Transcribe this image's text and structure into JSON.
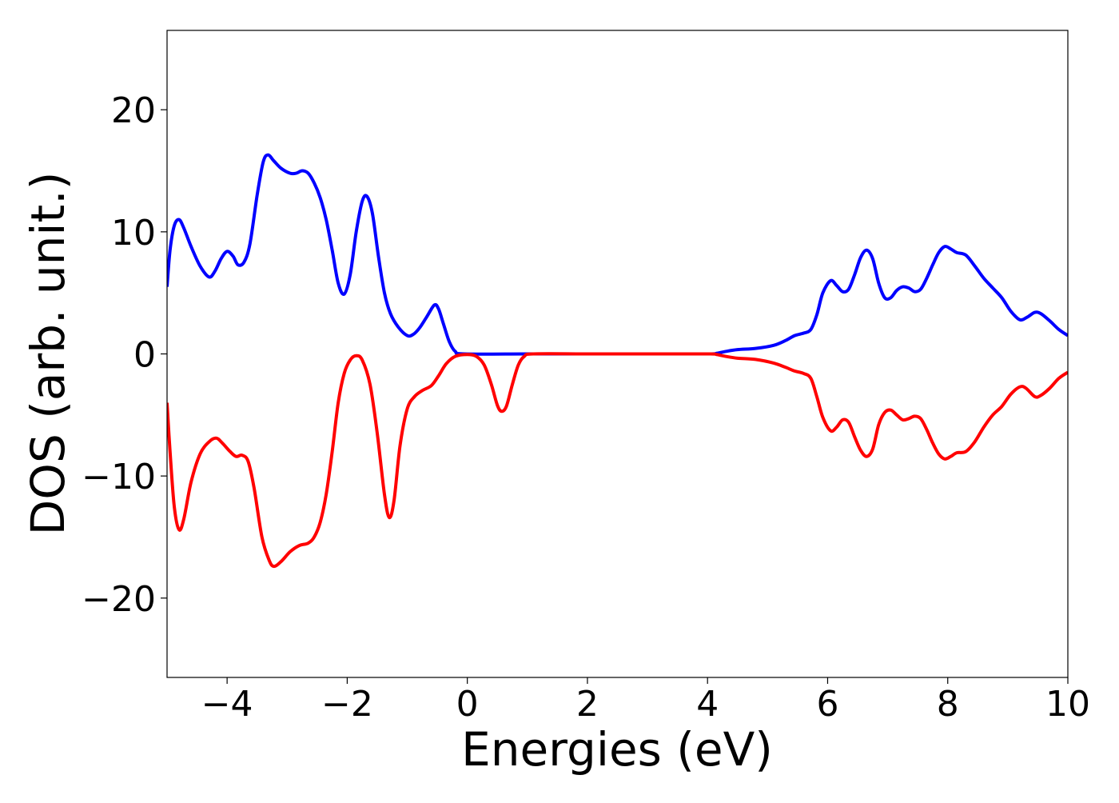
{
  "chart_data": {
    "type": "line",
    "title": "",
    "xlabel": "Energies (eV)",
    "ylabel": "DOS (arb. unit.)",
    "xlim": [
      -5,
      10
    ],
    "ylim": [
      -26.5,
      26.5
    ],
    "x_ticks": [
      -4,
      -2,
      0,
      2,
      4,
      6,
      8,
      10
    ],
    "x_tick_labels": [
      "−4",
      "−2",
      "0",
      "2",
      "4",
      "6",
      "8",
      "10"
    ],
    "y_ticks": [
      -20,
      -10,
      0,
      10,
      20
    ],
    "y_tick_labels": [
      "−20",
      "−10",
      "0",
      "10",
      "20"
    ],
    "grid": false,
    "legend": "none",
    "series": [
      {
        "color": "#0000ff",
        "points": [
          [
            -5.0,
            5.5
          ],
          [
            -4.95,
            8.5
          ],
          [
            -4.88,
            10.5
          ],
          [
            -4.8,
            11.0
          ],
          [
            -4.72,
            10.3
          ],
          [
            -4.6,
            8.8
          ],
          [
            -4.45,
            7.2
          ],
          [
            -4.3,
            6.3
          ],
          [
            -4.2,
            6.8
          ],
          [
            -4.1,
            7.8
          ],
          [
            -4.0,
            8.4
          ],
          [
            -3.9,
            8.0
          ],
          [
            -3.82,
            7.3
          ],
          [
            -3.72,
            7.5
          ],
          [
            -3.62,
            9.0
          ],
          [
            -3.5,
            13.0
          ],
          [
            -3.4,
            15.7
          ],
          [
            -3.32,
            16.3
          ],
          [
            -3.22,
            15.8
          ],
          [
            -3.1,
            15.2
          ],
          [
            -2.95,
            14.8
          ],
          [
            -2.85,
            14.8
          ],
          [
            -2.75,
            15.0
          ],
          [
            -2.65,
            14.8
          ],
          [
            -2.55,
            14.0
          ],
          [
            -2.45,
            12.8
          ],
          [
            -2.35,
            11.0
          ],
          [
            -2.25,
            8.5
          ],
          [
            -2.15,
            5.8
          ],
          [
            -2.05,
            4.9
          ],
          [
            -1.95,
            6.5
          ],
          [
            -1.85,
            10.0
          ],
          [
            -1.75,
            12.5
          ],
          [
            -1.67,
            12.9
          ],
          [
            -1.58,
            11.5
          ],
          [
            -1.48,
            8.0
          ],
          [
            -1.38,
            5.0
          ],
          [
            -1.28,
            3.3
          ],
          [
            -1.15,
            2.2
          ],
          [
            -1.0,
            1.5
          ],
          [
            -0.9,
            1.6
          ],
          [
            -0.8,
            2.1
          ],
          [
            -0.68,
            3.0
          ],
          [
            -0.55,
            4.0
          ],
          [
            -0.48,
            3.7
          ],
          [
            -0.4,
            2.5
          ],
          [
            -0.3,
            1.0
          ],
          [
            -0.2,
            0.2
          ],
          [
            -0.05,
            0.0
          ],
          [
            1.0,
            0.0
          ],
          [
            2.0,
            0.0
          ],
          [
            3.0,
            0.0
          ],
          [
            4.0,
            0.0
          ],
          [
            4.15,
            0.05
          ],
          [
            4.3,
            0.2
          ],
          [
            4.5,
            0.35
          ],
          [
            4.8,
            0.45
          ],
          [
            5.1,
            0.7
          ],
          [
            5.3,
            1.1
          ],
          [
            5.45,
            1.5
          ],
          [
            5.6,
            1.7
          ],
          [
            5.72,
            2.0
          ],
          [
            5.82,
            3.2
          ],
          [
            5.92,
            5.0
          ],
          [
            6.05,
            6.0
          ],
          [
            6.15,
            5.6
          ],
          [
            6.25,
            5.1
          ],
          [
            6.35,
            5.3
          ],
          [
            6.45,
            6.5
          ],
          [
            6.55,
            7.9
          ],
          [
            6.65,
            8.5
          ],
          [
            6.75,
            7.8
          ],
          [
            6.85,
            5.8
          ],
          [
            6.95,
            4.6
          ],
          [
            7.05,
            4.6
          ],
          [
            7.15,
            5.2
          ],
          [
            7.25,
            5.5
          ],
          [
            7.35,
            5.4
          ],
          [
            7.45,
            5.1
          ],
          [
            7.55,
            5.3
          ],
          [
            7.65,
            6.2
          ],
          [
            7.75,
            7.3
          ],
          [
            7.85,
            8.3
          ],
          [
            7.95,
            8.8
          ],
          [
            8.05,
            8.6
          ],
          [
            8.15,
            8.3
          ],
          [
            8.3,
            8.1
          ],
          [
            8.45,
            7.2
          ],
          [
            8.6,
            6.2
          ],
          [
            8.75,
            5.4
          ],
          [
            8.9,
            4.6
          ],
          [
            9.05,
            3.5
          ],
          [
            9.2,
            2.8
          ],
          [
            9.32,
            3.0
          ],
          [
            9.45,
            3.4
          ],
          [
            9.55,
            3.3
          ],
          [
            9.7,
            2.7
          ],
          [
            9.85,
            2.0
          ],
          [
            10.0,
            1.5
          ]
        ]
      },
      {
        "color": "#ff0000",
        "points": [
          [
            -5.0,
            -4.0
          ],
          [
            -4.95,
            -8.0
          ],
          [
            -4.88,
            -12.5
          ],
          [
            -4.8,
            -14.4
          ],
          [
            -4.72,
            -13.5
          ],
          [
            -4.6,
            -10.5
          ],
          [
            -4.45,
            -8.2
          ],
          [
            -4.3,
            -7.2
          ],
          [
            -4.18,
            -6.9
          ],
          [
            -4.08,
            -7.3
          ],
          [
            -3.95,
            -8.0
          ],
          [
            -3.85,
            -8.4
          ],
          [
            -3.75,
            -8.3
          ],
          [
            -3.65,
            -8.8
          ],
          [
            -3.55,
            -11.0
          ],
          [
            -3.42,
            -15.0
          ],
          [
            -3.3,
            -16.9
          ],
          [
            -3.22,
            -17.4
          ],
          [
            -3.1,
            -17.0
          ],
          [
            -2.95,
            -16.2
          ],
          [
            -2.8,
            -15.7
          ],
          [
            -2.65,
            -15.5
          ],
          [
            -2.55,
            -15.0
          ],
          [
            -2.45,
            -13.8
          ],
          [
            -2.35,
            -11.5
          ],
          [
            -2.25,
            -8.0
          ],
          [
            -2.15,
            -4.0
          ],
          [
            -2.05,
            -1.6
          ],
          [
            -1.95,
            -0.5
          ],
          [
            -1.85,
            -0.15
          ],
          [
            -1.75,
            -0.5
          ],
          [
            -1.62,
            -2.5
          ],
          [
            -1.5,
            -6.5
          ],
          [
            -1.38,
            -11.5
          ],
          [
            -1.3,
            -13.4
          ],
          [
            -1.22,
            -12.0
          ],
          [
            -1.12,
            -7.5
          ],
          [
            -1.0,
            -4.5
          ],
          [
            -0.88,
            -3.5
          ],
          [
            -0.75,
            -3.0
          ],
          [
            -0.6,
            -2.6
          ],
          [
            -0.48,
            -1.8
          ],
          [
            -0.35,
            -0.8
          ],
          [
            -0.2,
            -0.2
          ],
          [
            0.0,
            -0.05
          ],
          [
            0.15,
            -0.2
          ],
          [
            0.28,
            -0.9
          ],
          [
            0.4,
            -2.5
          ],
          [
            0.5,
            -4.2
          ],
          [
            0.57,
            -4.7
          ],
          [
            0.65,
            -4.3
          ],
          [
            0.75,
            -2.5
          ],
          [
            0.85,
            -0.9
          ],
          [
            0.95,
            -0.2
          ],
          [
            1.1,
            0.0
          ],
          [
            2.0,
            0.0
          ],
          [
            3.0,
            0.0
          ],
          [
            4.0,
            0.0
          ],
          [
            4.15,
            -0.05
          ],
          [
            4.3,
            -0.2
          ],
          [
            4.5,
            -0.35
          ],
          [
            4.8,
            -0.45
          ],
          [
            5.1,
            -0.75
          ],
          [
            5.3,
            -1.1
          ],
          [
            5.45,
            -1.4
          ],
          [
            5.6,
            -1.6
          ],
          [
            5.72,
            -2.0
          ],
          [
            5.82,
            -3.5
          ],
          [
            5.92,
            -5.2
          ],
          [
            6.05,
            -6.3
          ],
          [
            6.15,
            -6.0
          ],
          [
            6.25,
            -5.4
          ],
          [
            6.35,
            -5.6
          ],
          [
            6.45,
            -6.8
          ],
          [
            6.55,
            -7.9
          ],
          [
            6.65,
            -8.4
          ],
          [
            6.75,
            -7.8
          ],
          [
            6.85,
            -5.8
          ],
          [
            6.95,
            -4.8
          ],
          [
            7.05,
            -4.6
          ],
          [
            7.15,
            -5.0
          ],
          [
            7.25,
            -5.4
          ],
          [
            7.35,
            -5.3
          ],
          [
            7.45,
            -5.1
          ],
          [
            7.55,
            -5.3
          ],
          [
            7.65,
            -6.2
          ],
          [
            7.75,
            -7.3
          ],
          [
            7.85,
            -8.2
          ],
          [
            7.95,
            -8.6
          ],
          [
            8.05,
            -8.4
          ],
          [
            8.15,
            -8.1
          ],
          [
            8.3,
            -8.0
          ],
          [
            8.45,
            -7.2
          ],
          [
            8.6,
            -6.0
          ],
          [
            8.75,
            -5.0
          ],
          [
            8.9,
            -4.3
          ],
          [
            9.05,
            -3.3
          ],
          [
            9.2,
            -2.7
          ],
          [
            9.3,
            -2.8
          ],
          [
            9.45,
            -3.5
          ],
          [
            9.55,
            -3.4
          ],
          [
            9.7,
            -2.8
          ],
          [
            9.85,
            -2.0
          ],
          [
            10.0,
            -1.5
          ]
        ]
      }
    ]
  }
}
